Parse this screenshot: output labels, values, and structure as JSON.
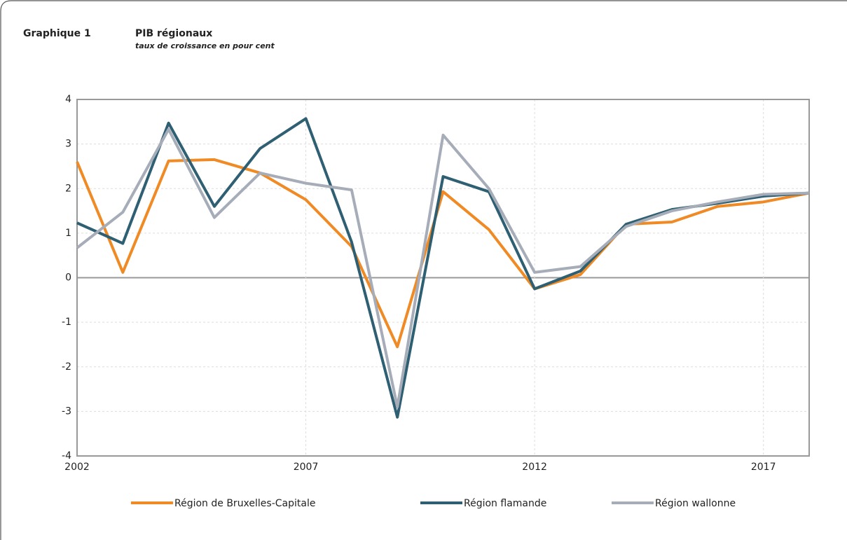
{
  "label": "Graphique 1",
  "chart_data": {
    "type": "line",
    "title": "PIB régionaux",
    "subtitle": "taux de croissance en pour cent",
    "x": [
      2002,
      2003,
      2004,
      2005,
      2006,
      2007,
      2008,
      2009,
      2010,
      2011,
      2012,
      2013,
      2014,
      2015,
      2016,
      2017,
      2018
    ],
    "xlim": [
      2002,
      2018
    ],
    "xticks": [
      2002,
      2007,
      2012,
      2017
    ],
    "ylim": [
      -4,
      4
    ],
    "yticks": [
      -4,
      -3,
      -2,
      -1,
      0,
      1,
      2,
      3,
      4
    ],
    "grid": true,
    "legend": "bottom",
    "series": [
      {
        "name": "Région de Bruxelles-Capitale",
        "color": "#f08a24",
        "values": [
          2.6,
          0.12,
          2.62,
          2.65,
          2.35,
          1.75,
          0.7,
          -1.55,
          1.93,
          1.08,
          -0.25,
          0.07,
          1.2,
          1.25,
          1.6,
          1.7,
          1.9
        ]
      },
      {
        "name": "Région flamande",
        "color": "#2e5f72",
        "values": [
          1.23,
          0.77,
          3.47,
          1.6,
          2.9,
          3.57,
          0.8,
          -3.13,
          2.27,
          1.93,
          -0.25,
          0.15,
          1.2,
          1.53,
          1.67,
          1.83,
          1.9
        ]
      },
      {
        "name": "Région wallonne",
        "color": "#a6adb8",
        "values": [
          0.67,
          1.47,
          3.33,
          1.35,
          2.35,
          2.12,
          1.97,
          -2.9,
          3.2,
          2.0,
          0.12,
          0.25,
          1.15,
          1.5,
          1.7,
          1.87,
          1.9
        ]
      }
    ]
  }
}
